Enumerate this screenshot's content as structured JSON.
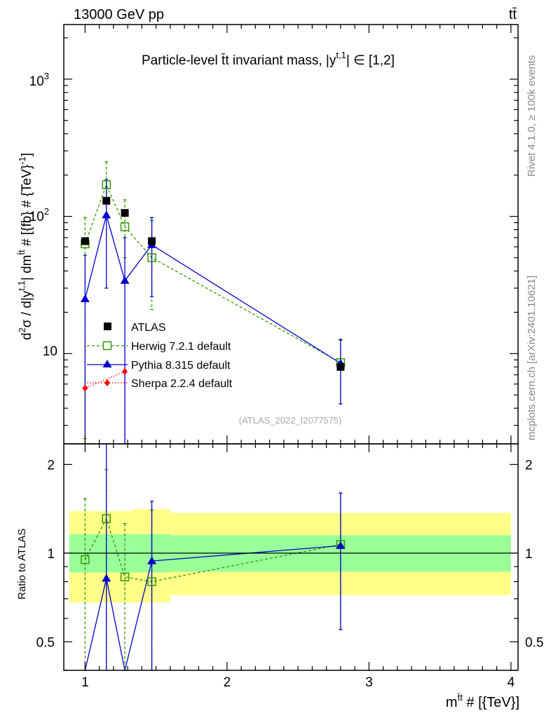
{
  "header": {
    "left": "13000 GeV pp",
    "right": "tt̄"
  },
  "side_labels": {
    "rivet": "Rivet 4.1.0, ≥ 100k events",
    "mcplots": "mcplots.cern.ch [arXiv:2401.10621]"
  },
  "chart_data": [
    {
      "type": "line",
      "panel": "main",
      "title": "Particle-level t̄t invariant mass, |y^{t,1}| ∈ [1,2]",
      "title_main": "Particle-level t̄t invariant mass, |y",
      "title_sup": "t,1",
      "title_end": "| ∈ [1,2]",
      "ylabel": "d²σ / d|y^{t,1}| dm^{t̄t} # [{fb} # {TeV}⁻¹]",
      "ylabel_parts": [
        "d",
        "2",
        "σ / d|y",
        "t,1",
        "| dm",
        "t̄t",
        " # [{fb} # {TeV}",
        "-1",
        "]"
      ],
      "yscale": "log",
      "ylim": [
        2.2,
        2500
      ],
      "xlim": [
        0.85,
        4.05
      ],
      "ytick_labels": [
        "10",
        "10",
        "10"
      ],
      "ytick_exps": [
        "",
        "2",
        "3"
      ],
      "watermark": "(ATLAS_2022_I2077575)",
      "series": [
        {
          "name": "ATLAS",
          "color": "#000000",
          "marker": "square-filled",
          "x": [
            1.0,
            1.15,
            1.28,
            1.47,
            2.8
          ],
          "y": [
            66,
            130,
            106,
            66,
            8
          ]
        },
        {
          "name": "Herwig 7.2.1 default",
          "color": "#339900",
          "marker": "square-open",
          "linestyle": "dashed",
          "x": [
            1.0,
            1.15,
            1.28,
            1.47,
            2.8
          ],
          "y": [
            63,
            170,
            84,
            50,
            8.6
          ],
          "yerr_low": [
            2.4,
            100,
            50,
            21,
            4.3
          ],
          "yerr_high": [
            98,
            250,
            132,
            93,
            12.5
          ]
        },
        {
          "name": "Pythia 8.315 default",
          "color": "#0000cc",
          "marker": "triangle-filled",
          "linestyle": "solid",
          "x": [
            1.0,
            1.15,
            1.28,
            1.47,
            2.8
          ],
          "y": [
            25,
            102,
            34,
            62,
            8.5
          ],
          "yerr_low": [
            2.2,
            30,
            2.2,
            26,
            4.3
          ],
          "yerr_high": [
            52,
            185,
            70,
            98,
            12.7
          ]
        },
        {
          "name": "Sherpa 2.2.4 default",
          "color": "#ff0000",
          "marker": "diamond-filled",
          "linestyle": "dotted",
          "x": [
            1.0,
            1.28
          ],
          "y": [
            5.6,
            7.4
          ],
          "yerr_low": [
            2.2,
            2.2
          ],
          "yerr_high": [
            5.6,
            7.4
          ]
        }
      ]
    },
    {
      "type": "line",
      "panel": "ratio",
      "ylabel": "Ratio to ATLAS",
      "xlabel": "m^{t̄t} # [{TeV}]",
      "xlabel_main": "m",
      "xlabel_sup": "t̄t",
      "xlabel_end": " # [{TeV}]",
      "yscale": "log",
      "ylim": [
        0.4,
        2.35
      ],
      "xlim": [
        0.85,
        4.05
      ],
      "xticks": [
        1,
        2,
        3,
        4
      ],
      "xtick_labels": [
        "1",
        "2",
        "3",
        "4"
      ],
      "yticks": [
        0.5,
        1,
        2
      ],
      "ytick_labels": [
        "0.5",
        "1",
        "2"
      ],
      "bands": {
        "edges": [
          0.89,
          1.34,
          1.6,
          4.0
        ],
        "inner_low": [
          0.86,
          0.86,
          0.865,
          0.865
        ],
        "inner_high": [
          1.16,
          1.16,
          1.15,
          1.15
        ],
        "outer_low": [
          0.68,
          0.68,
          0.72,
          0.72
        ],
        "outer_high": [
          1.39,
          1.41,
          1.37,
          1.37
        ],
        "inner_color": "#99ff99",
        "outer_color": "#ffff88"
      },
      "series": [
        {
          "name": "Herwig 7.2.1 default",
          "color": "#339900",
          "x": [
            1.0,
            1.15,
            1.28,
            1.47,
            2.8
          ],
          "y": [
            0.95,
            1.31,
            0.83,
            0.8,
            1.07
          ],
          "yerr_low": [
            0.4,
            0.4,
            0.4,
            0.4,
            0.55
          ],
          "yerr_high": [
            1.53,
            1.92,
            1.26,
            1.4,
            1.6
          ]
        },
        {
          "name": "Pythia 8.315 default",
          "color": "#0000cc",
          "x": [
            1.0,
            1.15,
            1.28,
            1.47,
            2.8
          ],
          "y": [
            0.38,
            0.82,
            0.33,
            0.94,
            1.06
          ],
          "yerr_low": [
            0.4,
            0.4,
            0.4,
            0.4,
            0.55
          ],
          "yerr_high": [
            0.4,
            2.4,
            0.4,
            1.5,
            1.6
          ]
        }
      ]
    }
  ]
}
